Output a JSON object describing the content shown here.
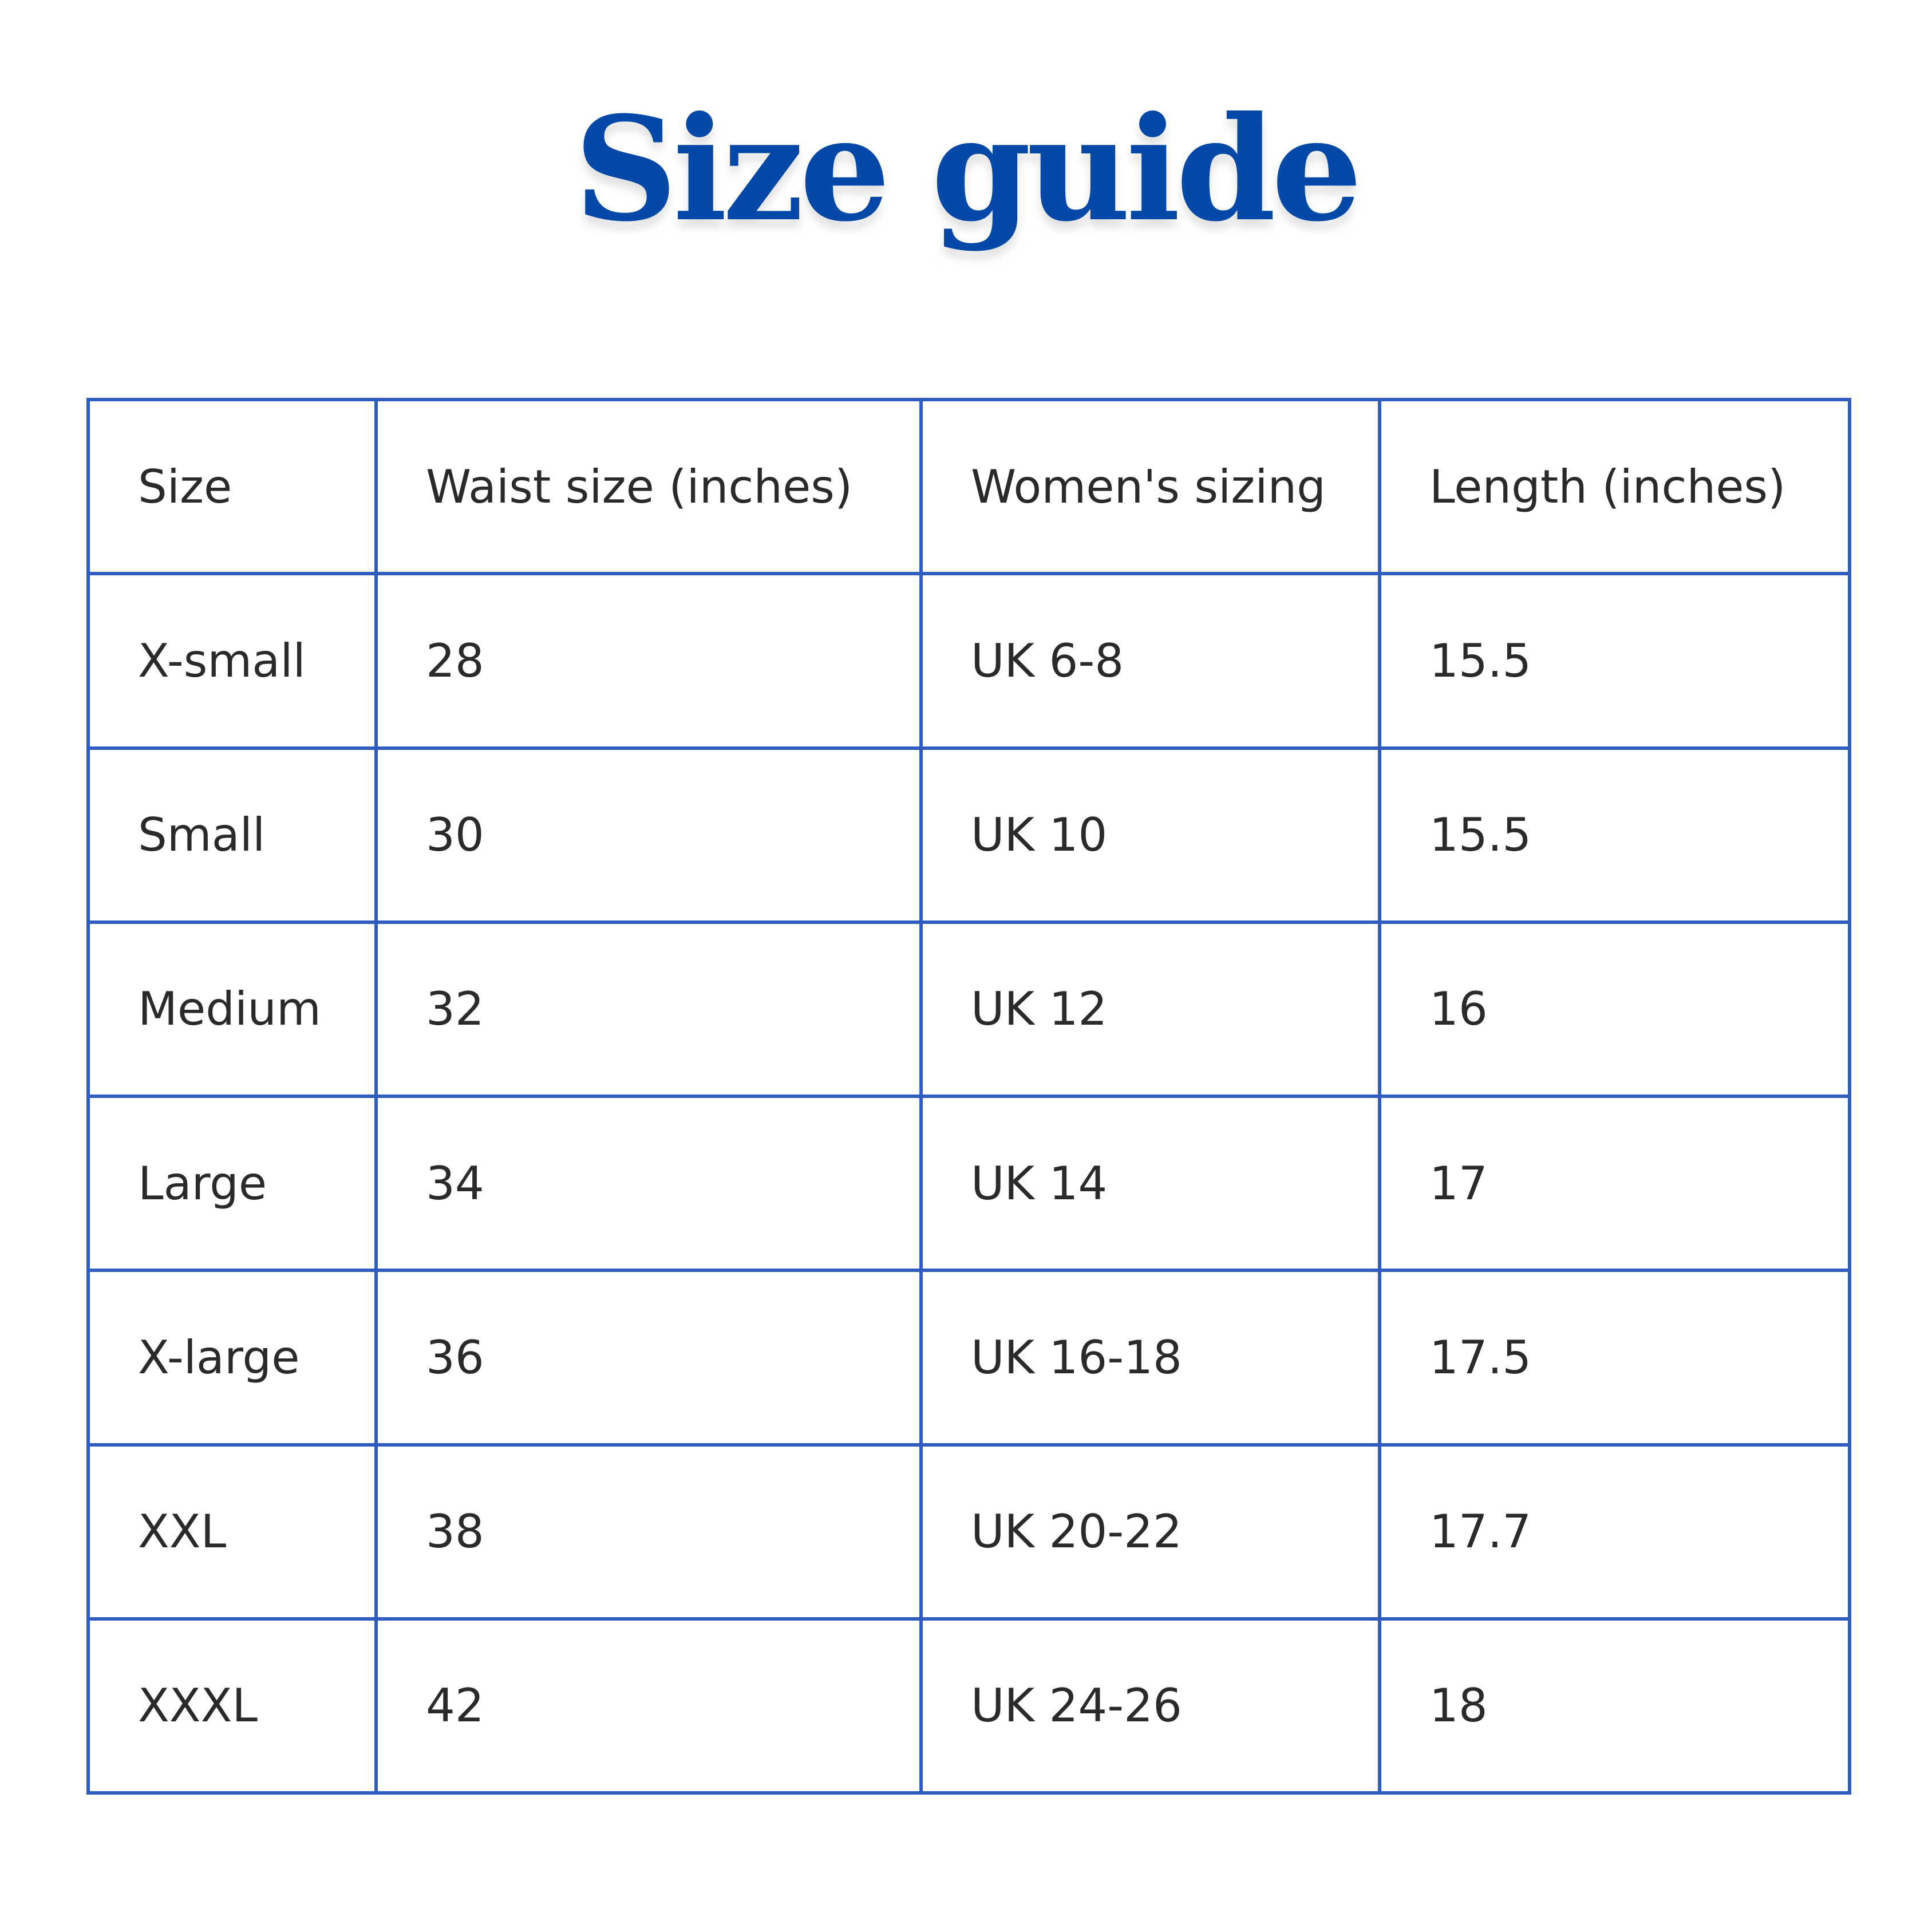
{
  "title": "Size guide",
  "colors": {
    "title": "#0448a8",
    "grid": "#2f5cc0",
    "text": "#2a2a2a"
  },
  "table": {
    "headers": [
      "Size",
      "Waist size (inches)",
      "Women's sizing",
      "Length (inches)"
    ],
    "rows": [
      [
        "X-small",
        "28",
        "UK 6-8",
        "15.5"
      ],
      [
        "Small",
        "30",
        "UK 10",
        "15.5"
      ],
      [
        "Medium",
        "32",
        "UK 12",
        "16"
      ],
      [
        "Large",
        "34",
        "UK 14",
        "17"
      ],
      [
        "X-large",
        "36",
        "UK 16-18",
        "17.5"
      ],
      [
        "XXL",
        "38",
        "UK 20-22",
        "17.7"
      ],
      [
        "XXXL",
        "42",
        "UK 24-26",
        "18"
      ]
    ]
  }
}
